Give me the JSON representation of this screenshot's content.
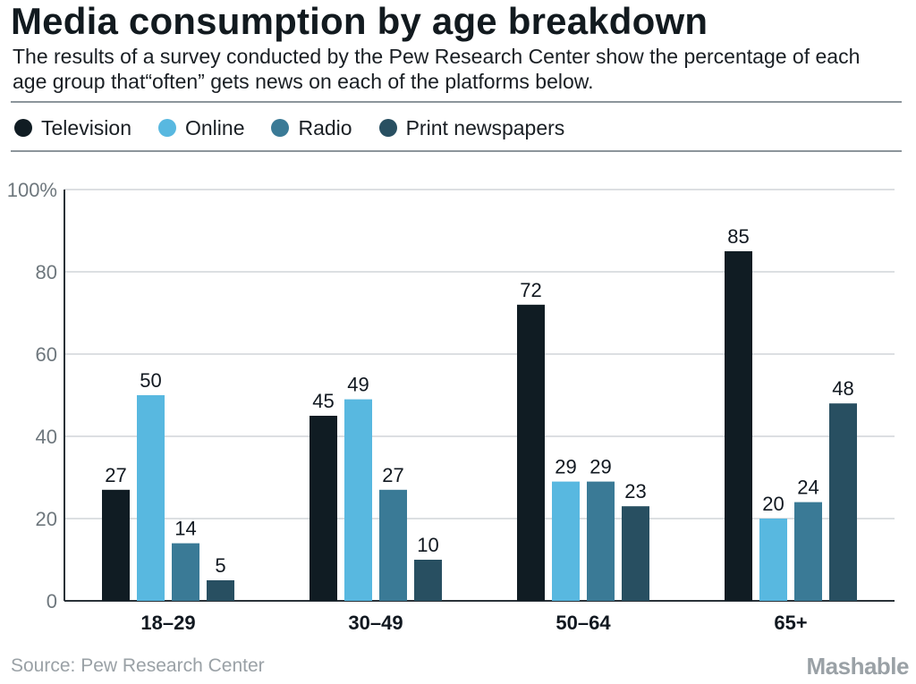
{
  "header": {
    "title": "Media consumption by age breakdown",
    "subtitle": "The results of a survey conducted by the Pew Research Center show the percentage of each age group that“often” gets news on each of the platforms below."
  },
  "footer": {
    "source": "Source: Pew Research Center",
    "brand": "Mashable"
  },
  "colors": {
    "Television": "#101c23",
    "Online": "#58b8e0",
    "Radio": "#3a7a96",
    "Print newspapers": "#284f61",
    "grid": "#b8bfc4",
    "text": "#111820",
    "tick": "#6e777d"
  },
  "chart_data": {
    "type": "bar",
    "categories": [
      "18–29",
      "30–49",
      "50–64",
      "65+"
    ],
    "series": [
      {
        "name": "Television",
        "values": [
          27,
          45,
          72,
          85
        ]
      },
      {
        "name": "Online",
        "values": [
          50,
          49,
          29,
          20
        ]
      },
      {
        "name": "Radio",
        "values": [
          14,
          27,
          29,
          24
        ]
      },
      {
        "name": "Print newspapers",
        "values": [
          5,
          10,
          23,
          48
        ]
      }
    ],
    "yticks": [
      "0",
      "20",
      "40",
      "60",
      "80",
      "100%"
    ],
    "ylim": [
      0,
      100
    ],
    "grid": true,
    "legend": "top-left",
    "data_labels": true
  }
}
